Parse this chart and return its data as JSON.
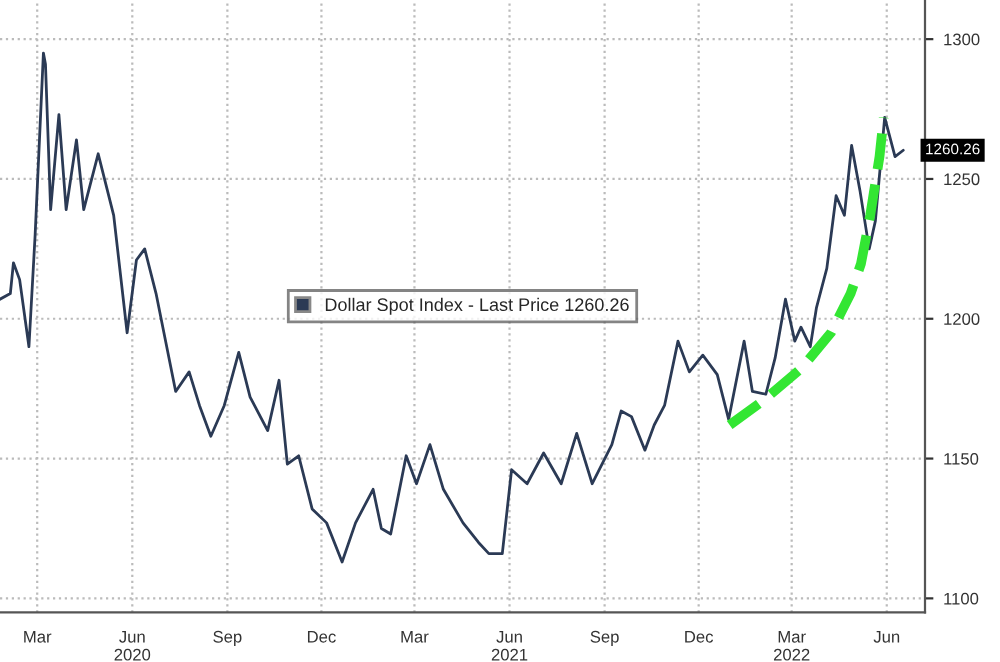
{
  "chart_data": {
    "type": "line",
    "legend": "center",
    "grid": true,
    "line_style": "solid",
    "xlim": [
      "2020-01-25",
      "2022-07-08"
    ],
    "xticks": [
      {
        "value": "2020-03-01",
        "label": "Mar"
      },
      {
        "value": "2020-06-01",
        "label": "Jun\n2020"
      },
      {
        "value": "2020-09-01",
        "label": "Sep"
      },
      {
        "value": "2020-12-01",
        "label": "Dec"
      },
      {
        "value": "2021-03-01",
        "label": "Mar"
      },
      {
        "value": "2021-06-01",
        "label": "Jun\n2021"
      },
      {
        "value": "2021-09-01",
        "label": "Sep"
      },
      {
        "value": "2021-12-01",
        "label": "Dec"
      },
      {
        "value": "2022-03-01",
        "label": "Mar\n2022"
      },
      {
        "value": "2022-06-01",
        "label": "Jun"
      }
    ],
    "ylim": [
      1095,
      1314
    ],
    "yticks": [
      1100,
      1150,
      1200,
      1250,
      1300
    ],
    "annotations": [
      {
        "text": "1260.26",
        "x": "2022-06-17",
        "y": 1260.26
      }
    ],
    "series": [
      {
        "name": "Dollar Spot Index - Last Price 1260.26",
        "color": "#2b3a55",
        "x": [
          "2020-01-25",
          "2020-02-04",
          "2020-02-07",
          "2020-02-13",
          "2020-02-22",
          "2020-02-28",
          "2020-03-07",
          "2020-03-09",
          "2020-03-14",
          "2020-03-22",
          "2020-03-29",
          "2020-04-08",
          "2020-04-15",
          "2020-04-29",
          "2020-05-14",
          "2020-05-27",
          "2020-06-05",
          "2020-06-13",
          "2020-06-24",
          "2020-07-13",
          "2020-07-26",
          "2020-08-05",
          "2020-08-16",
          "2020-08-29",
          "2020-09-12",
          "2020-09-23",
          "2020-10-10",
          "2020-10-21",
          "2020-10-29",
          "2020-11-09",
          "2020-11-22",
          "2020-12-06",
          "2020-12-21",
          "2021-01-03",
          "2021-01-20",
          "2021-01-28",
          "2021-02-06",
          "2021-02-21",
          "2021-03-03",
          "2021-03-16",
          "2021-03-29",
          "2021-04-17",
          "2021-05-02",
          "2021-05-12",
          "2021-05-25",
          "2021-06-03",
          "2021-06-18",
          "2021-07-04",
          "2021-07-21",
          "2021-08-05",
          "2021-08-20",
          "2021-09-08",
          "2021-09-17",
          "2021-09-27",
          "2021-10-10",
          "2021-10-19",
          "2021-10-29",
          "2021-11-11",
          "2021-11-22",
          "2021-12-05",
          "2021-12-19",
          "2021-12-30",
          "2022-01-14",
          "2022-01-22",
          "2022-02-04",
          "2022-02-13",
          "2022-02-23",
          "2022-03-04",
          "2022-03-10",
          "2022-03-19",
          "2022-03-25",
          "2022-04-04",
          "2022-04-13",
          "2022-04-21",
          "2022-04-28",
          "2022-05-06",
          "2022-05-15",
          "2022-05-21",
          "2022-05-30",
          "2022-06-09",
          "2022-06-17"
        ],
        "values": [
          1207,
          1209,
          1220,
          1214,
          1190,
          1230,
          1295,
          1291,
          1239,
          1273,
          1239,
          1264,
          1239,
          1259,
          1237,
          1195,
          1221,
          1225,
          1209,
          1174,
          1181,
          1169,
          1158,
          1169,
          1188,
          1172,
          1160,
          1178,
          1148,
          1151,
          1132,
          1127,
          1113,
          1127,
          1139,
          1125,
          1123,
          1151,
          1141,
          1155,
          1139,
          1127,
          1120,
          1116,
          1116,
          1146,
          1141,
          1152,
          1141,
          1159,
          1141,
          1155,
          1167,
          1165,
          1153,
          1162,
          1169,
          1192,
          1181,
          1187,
          1180,
          1164,
          1192,
          1174,
          1173,
          1186,
          1207,
          1192,
          1197,
          1190,
          1204,
          1218,
          1244,
          1237,
          1262,
          1246,
          1225,
          1235,
          1272,
          1258,
          1260.26
        ]
      },
      {
        "type": "line",
        "color": "#33e633",
        "line_style": "dashed",
        "x": [
          "2021-12-31",
          "2022-02-01",
          "2022-03-11",
          "2022-04-08",
          "2022-04-27",
          "2022-05-07",
          "2022-05-16",
          "2022-05-25",
          "2022-05-29"
        ],
        "values": [
          1162,
          1170.6,
          1182.5,
          1195,
          1209,
          1219.6,
          1237,
          1258,
          1272
        ]
      }
    ]
  }
}
